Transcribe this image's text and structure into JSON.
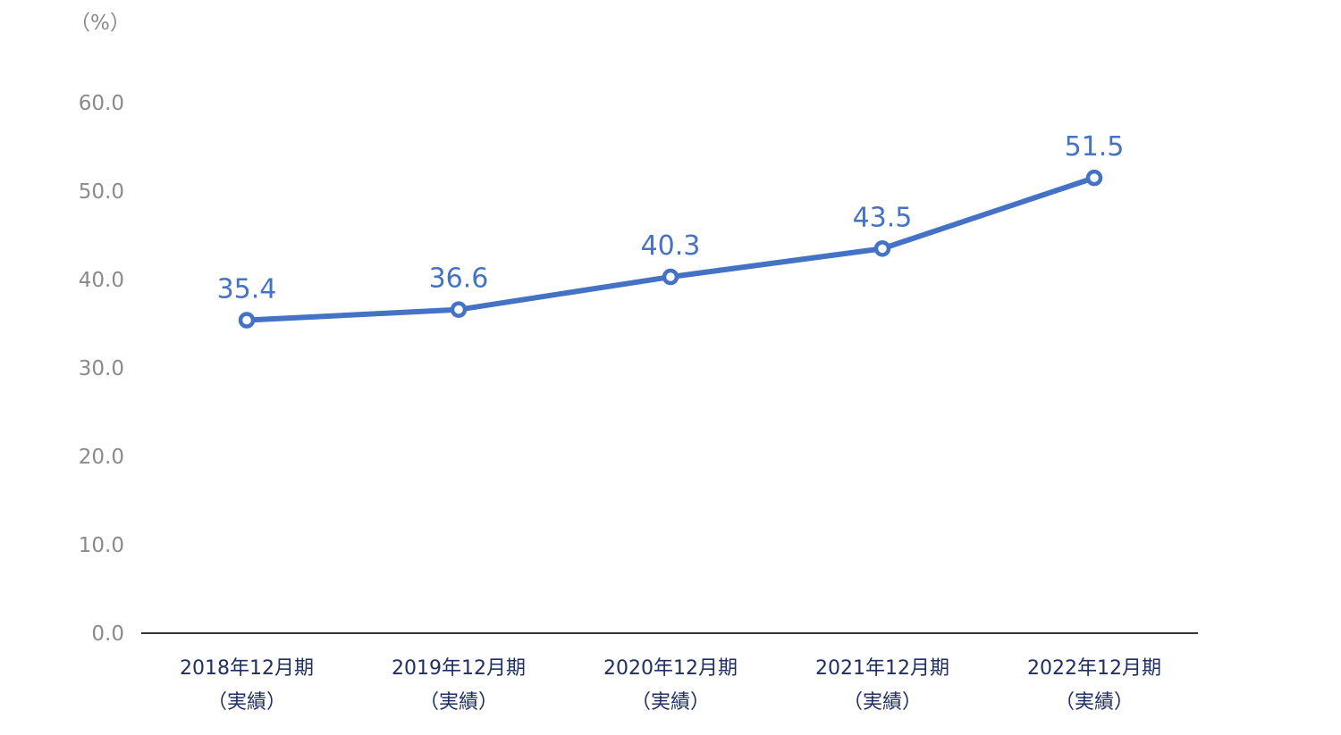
{
  "chart_data": {
    "type": "line",
    "title": "",
    "unit_label": "（%）",
    "categories": [
      [
        "2018年12月期",
        "（実績）"
      ],
      [
        "2019年12月期",
        "（実績）"
      ],
      [
        "2020年12月期",
        "（実績）"
      ],
      [
        "2021年12月期",
        "（実績）"
      ],
      [
        "2022年12月期",
        "（実績）"
      ]
    ],
    "series": [
      {
        "values": [
          35.4,
          36.6,
          40.3,
          43.5,
          51.5
        ],
        "data_labels": [
          "35.4",
          "36.6",
          "40.3",
          "43.5",
          "51.5"
        ]
      }
    ],
    "y_ticks": [
      "0.0",
      "10.0",
      "20.0",
      "30.0",
      "40.0",
      "50.0",
      "60.0"
    ],
    "ylim": [
      0,
      60
    ],
    "grid": false,
    "legend": "none",
    "colors": {
      "line": "#4472c4",
      "axis": "#333333",
      "tick_text": "#8a8a8a",
      "category_text": "#1f2f63",
      "data_label_text": "#4472c4"
    }
  }
}
